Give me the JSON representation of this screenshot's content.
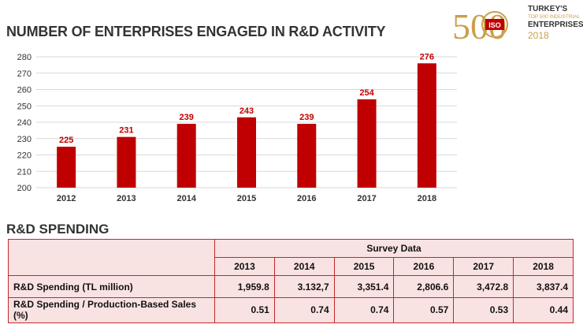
{
  "header": {
    "title": "NUMBER OF ENTERPRISES ENGAGED IN R&D ACTIVITY",
    "logo": {
      "number": "500",
      "badge": "ISO",
      "line1": "TURKEY'S",
      "line2": "TOP 500 INDUSTRIAL",
      "line3": "ENTERPRISES",
      "line4": "2018"
    }
  },
  "colors": {
    "bar": "#c00000",
    "label": "#c00000",
    "grid": "#d9d9d9",
    "table_border": "#c22a2a",
    "table_fill": "#f9e2e2",
    "logo_gold": "#c9a04e"
  },
  "chart_data": {
    "type": "bar",
    "title": "NUMBER OF ENTERPRISES ENGAGED IN R&D ACTIVITY",
    "categories": [
      "2012",
      "2013",
      "2014",
      "2015",
      "2016",
      "2017",
      "2018"
    ],
    "values": [
      225,
      231,
      239,
      243,
      239,
      254,
      276
    ],
    "data_labels": [
      "225",
      "231",
      "239",
      "243",
      "239",
      "254",
      "276"
    ],
    "ylim": [
      200,
      280
    ],
    "yticks": [
      200,
      210,
      220,
      230,
      240,
      250,
      260,
      270,
      280
    ],
    "ytick_labels": [
      "200",
      "210",
      "220",
      "230",
      "240",
      "250",
      "260",
      "270",
      "280"
    ],
    "xlabel": "",
    "ylabel": "",
    "grid": true,
    "legend": "none"
  },
  "spending": {
    "title": "R&D SPENDING",
    "group_header": "Survey Data",
    "years": [
      "2013",
      "2014",
      "2015",
      "2016",
      "2017",
      "2018"
    ],
    "rows": [
      {
        "label": "R&D Spending (TL million)",
        "values": [
          "1,959.8",
          "3.132,7",
          "3,351.4",
          "2,806.6",
          "3,472.8",
          "3,837.4"
        ]
      },
      {
        "label": "R&D Spending / Production-Based Sales (%)",
        "values": [
          "0.51",
          "0.74",
          "0.74",
          "0.57",
          "0.53",
          "0.44"
        ]
      }
    ]
  }
}
